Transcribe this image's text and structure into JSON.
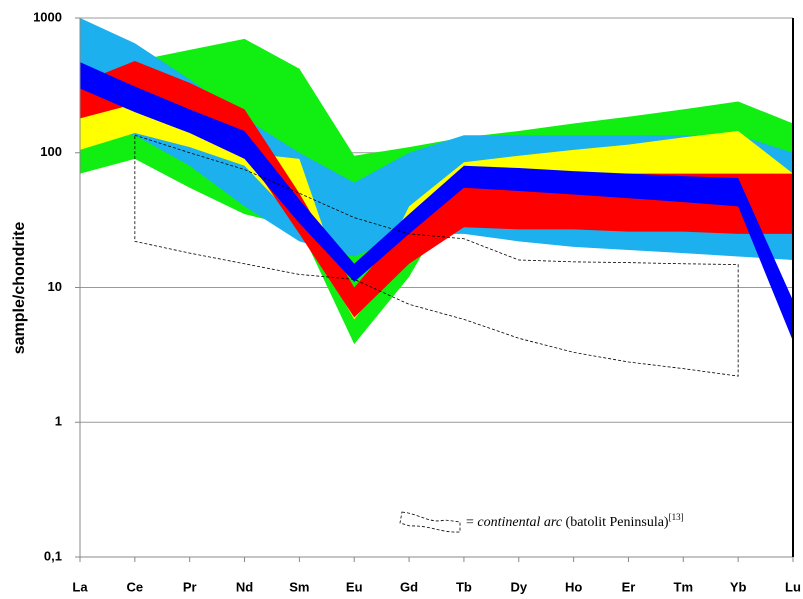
{
  "chart_data": {
    "type": "band",
    "y_label": "sample/chondrite",
    "categories": [
      "La",
      "Ce",
      "Pr",
      "Nd",
      "Sm",
      "Eu",
      "Gd",
      "Tb",
      "Dy",
      "Ho",
      "Er",
      "Tm",
      "Yb",
      "Lu"
    ],
    "log_scale": true,
    "grid": true,
    "ylim": [
      0.1,
      1000
    ],
    "yticks": [
      {
        "value": 0.1,
        "label": "0,1"
      },
      1,
      10,
      100,
      1000
    ],
    "series": [
      {
        "color": "#11ee11",
        "upper": [
          400,
          480,
          580,
          700,
          420,
          95,
          110,
          130,
          145,
          165,
          185,
          210,
          240,
          165
        ],
        "lower": [
          70,
          90,
          55,
          35,
          28,
          3.8,
          12,
          60,
          55,
          50,
          45,
          42,
          40,
          40
        ]
      },
      {
        "color": "#1cb0ee",
        "upper": [
          1000,
          650,
          350,
          180,
          100,
          60,
          100,
          135,
          135,
          135,
          135,
          135,
          135,
          100
        ],
        "lower": [
          160,
          135,
          80,
          40,
          22,
          17,
          25,
          25,
          22,
          20,
          19,
          18,
          17,
          16
        ]
      },
      {
        "color": "#ffff00",
        "upper": [
          300,
          290,
          180,
          100,
          90,
          6,
          40,
          85,
          95,
          105,
          115,
          130,
          145,
          70
        ],
        "lower": [
          105,
          140,
          110,
          80,
          30,
          5.8,
          20,
          60,
          55,
          50,
          50,
          50,
          50,
          60
        ]
      },
      {
        "color": "#ff0000",
        "upper": [
          330,
          480,
          330,
          210,
          50,
          10,
          30,
          70,
          70,
          70,
          70,
          70,
          70,
          70
        ],
        "lower": [
          180,
          230,
          160,
          100,
          25,
          6,
          15,
          28,
          27,
          27,
          26,
          26,
          25,
          25
        ]
      },
      {
        "color": "#0000ff",
        "upper": [
          470,
          310,
          210,
          145,
          45,
          15,
          35,
          80,
          77,
          73,
          70,
          67,
          65,
          8
        ],
        "lower": [
          300,
          200,
          140,
          90,
          30,
          11,
          25,
          55,
          52,
          49,
          46,
          43,
          40,
          4
        ]
      },
      {
        "color": "#000000",
        "dashed": true,
        "upper": [
          null,
          135,
          100,
          75,
          50,
          33,
          25,
          23,
          16,
          15.5,
          15.3,
          15,
          14.8,
          null
        ],
        "lower": [
          null,
          22,
          18,
          15,
          12.5,
          11.5,
          7.5,
          5.8,
          4.2,
          3.3,
          2.8,
          2.5,
          2.2,
          null
        ]
      }
    ],
    "legend": {
      "prefix": "=",
      "italic": "continental arc",
      "text": "(batolit Peninsula)",
      "ref": "[13]"
    }
  }
}
